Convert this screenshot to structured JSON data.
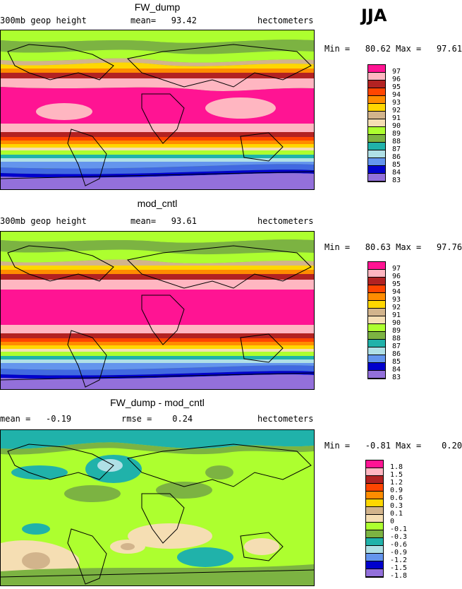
{
  "season": "JJA",
  "colors": [
    "#ff1493",
    "#ffb6c1",
    "#b22222",
    "#ff4500",
    "#ff8c00",
    "#ffd700",
    "#d2b48c",
    "#f5deb3",
    "#adff2f",
    "#7cb342",
    "#20b2aa",
    "#b0e0e6",
    "#6495ed",
    "#4169e1",
    "#0000cd",
    "#9370db"
  ],
  "panels": [
    {
      "id": "fw-dump",
      "title": "FW_dump",
      "left_label": "300mb geop height",
      "mid_label": "mean=   93.42",
      "right_label": "hectometers",
      "stats": "Min =   80.62 Max =   97.61",
      "legend_labels": [
        "97",
        "96",
        "95",
        "94",
        "93",
        "92",
        "91",
        "90",
        "89",
        "88",
        "87",
        "86",
        "85",
        "84",
        "83"
      ]
    },
    {
      "id": "mod-cntl",
      "title": "mod_cntl",
      "left_label": "300mb geop height",
      "mid_label": "mean=   93.61",
      "right_label": "hectometers",
      "stats": "Min =   80.63 Max =   97.76",
      "legend_labels": [
        "97",
        "96",
        "95",
        "94",
        "93",
        "92",
        "91",
        "90",
        "89",
        "88",
        "87",
        "86",
        "85",
        "84",
        "83"
      ]
    },
    {
      "id": "difference",
      "title": "FW_dump - mod_cntl",
      "left_label": "mean =   -0.19",
      "mid_label": "rmse =    0.24",
      "right_label": "hectometers",
      "stats": "Min =   -0.81 Max =    0.20",
      "legend_labels": [
        "1.8",
        "1.5",
        "1.2",
        "0.9",
        "0.6",
        "0.3",
        "0.1",
        "0",
        "-0.1",
        "-0.3",
        "-0.6",
        "-0.9",
        "-1.2",
        "-1.5",
        "-1.8"
      ]
    }
  ]
}
